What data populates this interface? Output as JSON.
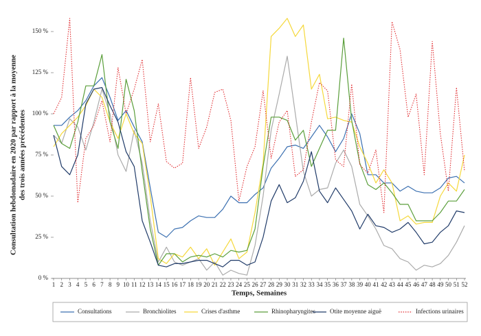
{
  "chart_data": {
    "type": "line",
    "ylabel": [
      "Consultation hebdomadaire en 2020 par rapport à la moyenne",
      "des trois années précédentes"
    ],
    "xlabel": "Temps, Semaines",
    "x": [
      1,
      2,
      3,
      4,
      5,
      6,
      7,
      8,
      9,
      10,
      11,
      12,
      13,
      14,
      15,
      16,
      17,
      18,
      19,
      20,
      21,
      22,
      23,
      24,
      25,
      26,
      27,
      28,
      29,
      30,
      31,
      32,
      33,
      34,
      35,
      36,
      37,
      38,
      39,
      40,
      41,
      42,
      43,
      44,
      45,
      46,
      47,
      48,
      49,
      50,
      51,
      52
    ],
    "xlim": [
      1,
      52
    ],
    "xticks": [
      1,
      2,
      3,
      4,
      5,
      6,
      7,
      8,
      9,
      10,
      11,
      12,
      13,
      14,
      15,
      16,
      17,
      18,
      19,
      20,
      21,
      22,
      23,
      24,
      25,
      26,
      27,
      28,
      29,
      30,
      31,
      32,
      33,
      34,
      35,
      36,
      37,
      38,
      39,
      40,
      41,
      42,
      43,
      44,
      45,
      46,
      47,
      48,
      49,
      50,
      51,
      52
    ],
    "ylim": [
      0,
      150
    ],
    "yticks": [
      {
        "value": 0,
        "label": "0 %"
      },
      {
        "value": 25,
        "label": "25 %"
      },
      {
        "value": 50,
        "label": "50 %"
      },
      {
        "value": 75,
        "label": "75 %"
      },
      {
        "value": 100,
        "label": "100 %"
      },
      {
        "value": 125,
        "label": "125 %"
      },
      {
        "value": 150,
        "label": "150 %"
      }
    ],
    "grid": false,
    "legend": "bottom",
    "series": [
      {
        "name": "Consultations",
        "color": "#3a6fb0",
        "style": "solid",
        "values": [
          93,
          93,
          98,
          102,
          108,
          117,
          122,
          110,
          96,
          102,
          92,
          83,
          55,
          28,
          25,
          30,
          31,
          35,
          38,
          37,
          37,
          42,
          50,
          46,
          46,
          51,
          55,
          67,
          73,
          80,
          81,
          79,
          86,
          93,
          86,
          77,
          85,
          100,
          88,
          63,
          63,
          58,
          58,
          53,
          56,
          53,
          52,
          52,
          55,
          61,
          62,
          58
        ]
      },
      {
        "name": "Bronchiolites",
        "color": "#aaaaaa",
        "style": "solid",
        "values": [
          87,
          82,
          97,
          92,
          78,
          95,
          115,
          100,
          75,
          65,
          90,
          70,
          35,
          10,
          19,
          10,
          8,
          10,
          12,
          5,
          10,
          2,
          5,
          3,
          2,
          20,
          50,
          90,
          112,
          135,
          100,
          65,
          50,
          54,
          55,
          70,
          78,
          68,
          45,
          38,
          30,
          20,
          18,
          12,
          10,
          5,
          8,
          7,
          9,
          14,
          22,
          32
        ]
      },
      {
        "name": "Crises d'asthme",
        "color": "#f5d83a",
        "style": "solid",
        "values": [
          80,
          88,
          93,
          98,
          105,
          115,
          110,
          95,
          85,
          100,
          88,
          82,
          50,
          12,
          9,
          15,
          13,
          19,
          12,
          18,
          8,
          16,
          24,
          12,
          16,
          40,
          70,
          147,
          152,
          158,
          147,
          154,
          115,
          124,
          97,
          98,
          96,
          95,
          80,
          70,
          58,
          66,
          58,
          35,
          38,
          33,
          34,
          34,
          50,
          58,
          53,
          75
        ]
      },
      {
        "name": "Rhinopharyngites",
        "color": "#5a9e3a",
        "style": "solid",
        "values": [
          93,
          82,
          79,
          95,
          117,
          117,
          136,
          95,
          79,
          121,
          102,
          65,
          30,
          8,
          15,
          15,
          10,
          13,
          14,
          13,
          15,
          13,
          17,
          16,
          17,
          30,
          68,
          98,
          98,
          96,
          84,
          90,
          68,
          79,
          90,
          90,
          146,
          96,
          70,
          57,
          54,
          58,
          52,
          45,
          45,
          35,
          35,
          35,
          40,
          47,
          47,
          54
        ]
      },
      {
        "name": "Otite moyenne aiguë",
        "color": "#1f3a68",
        "style": "solid",
        "values": [
          87,
          68,
          63,
          75,
          106,
          115,
          116,
          105,
          95,
          77,
          68,
          35,
          22,
          8,
          7,
          9,
          9,
          10,
          11,
          11,
          9,
          7,
          11,
          11,
          8,
          10,
          25,
          47,
          57,
          46,
          49,
          59,
          77,
          53,
          46,
          55,
          48,
          41,
          30,
          39,
          32,
          31,
          28,
          30,
          34,
          28,
          21,
          22,
          28,
          32,
          41,
          40
        ]
      },
      {
        "name": "Infections urinaires",
        "color": "#e0282c",
        "style": "dotted",
        "values": [
          100,
          110,
          158,
          46,
          85,
          93,
          108,
          83,
          128,
          100,
          115,
          133,
          83,
          106,
          71,
          67,
          70,
          122,
          79,
          92,
          113,
          115,
          96,
          47,
          68,
          80,
          114,
          73,
          95,
          102,
          62,
          66,
          95,
          119,
          114,
          72,
          68,
          118,
          69,
          64,
          78,
          40,
          156,
          139,
          98,
          112,
          63,
          144,
          88,
          53,
          116,
          65
        ]
      }
    ]
  }
}
